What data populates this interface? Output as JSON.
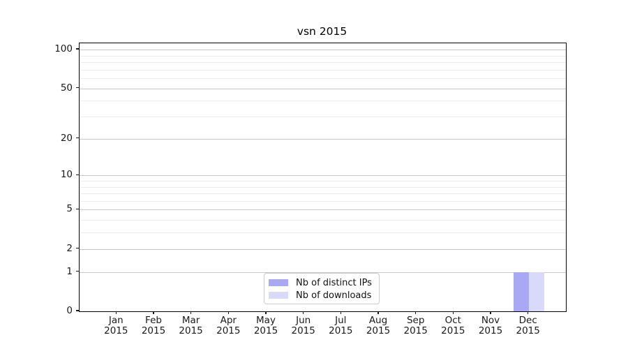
{
  "title": "vsn 2015",
  "chart_data": {
    "type": "bar",
    "title": "vsn 2015",
    "x": {
      "months": [
        "Jan",
        "Feb",
        "Mar",
        "Apr",
        "May",
        "Jun",
        "Jul",
        "Aug",
        "Sep",
        "Oct",
        "Nov",
        "Dec"
      ],
      "year": "2015"
    },
    "series": [
      {
        "name": "Nb of distinct IPs",
        "color": "#a8a8f5",
        "values": [
          0,
          0,
          0,
          0,
          0,
          0,
          0,
          0,
          0,
          0,
          0,
          1
        ]
      },
      {
        "name": "Nb of downloads",
        "color": "#d9d9fa",
        "values": [
          0,
          0,
          0,
          0,
          0,
          0,
          0,
          0,
          0,
          0,
          0,
          1
        ]
      }
    ],
    "yaxis": {
      "scale": "log10(1+value)",
      "tick_values": [
        0,
        1,
        2,
        5,
        10,
        20,
        50,
        100
      ],
      "minor_grid_values": [
        3,
        4,
        6,
        7,
        8,
        9,
        30,
        40,
        60,
        70,
        80,
        90
      ],
      "ylim": [
        0,
        111
      ]
    },
    "grid": "horizontal",
    "legend": {
      "location": "lower center inside plot",
      "entries": [
        "Nb of distinct IPs",
        "Nb of downloads"
      ]
    }
  },
  "colors": {
    "bar_distinct_ips": "#a8a8f5",
    "bar_downloads": "#d9d9fa",
    "grid_major": "#c8c8c8",
    "grid_minor": "#ebebeb",
    "spine": "#000000",
    "background": "#ffffff"
  }
}
